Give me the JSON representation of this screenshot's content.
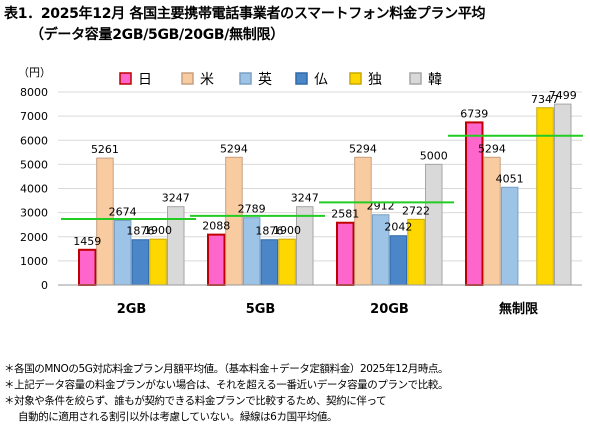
{
  "title_line1": "表1．2025年12月 各国主要携帯電話事業者のスマートフォン料金プラン平均",
  "title_line2": "（データ容量2GB/5GB/20GB/無制限）",
  "chart_data": {
    "type": "bar",
    "yunit": "（円）",
    "ylim": [
      0,
      8000
    ],
    "yticks": [
      0,
      1000,
      2000,
      3000,
      4000,
      5000,
      6000,
      7000,
      8000
    ],
    "grid": true,
    "legend_position": "top",
    "categories": [
      "2GB",
      "5GB",
      "20GB",
      "無制限"
    ],
    "series": [
      {
        "name": "日",
        "color": "#ff66cc",
        "edge": "#c00000",
        "values": [
          1459,
          2088,
          2581,
          6739
        ]
      },
      {
        "name": "米",
        "color": "#f8cba0",
        "edge": "#c8a080",
        "values": [
          5261,
          5294,
          5294,
          5294
        ]
      },
      {
        "name": "英",
        "color": "#9dc3e6",
        "edge": "#7aa0c4",
        "values": [
          2674,
          2789,
          2912,
          4051
        ]
      },
      {
        "name": "仏",
        "color": "#4a86c8",
        "edge": "#2f6aa8",
        "values": [
          1876,
          1876,
          2042,
          null
        ]
      },
      {
        "name": "独",
        "color": "#ffd700",
        "edge": "#c8a800",
        "values": [
          1900,
          1900,
          2722,
          7347
        ]
      },
      {
        "name": "韓",
        "color": "#d9d9d9",
        "edge": "#a6a6a6",
        "values": [
          3247,
          3247,
          5000,
          7499
        ]
      }
    ],
    "averages": {
      "color": "#22cc22",
      "values": [
        2736,
        2866,
        3425,
        6186
      ]
    },
    "labels": [
      [
        "1459",
        "5261",
        "2674",
        "1876",
        "1900",
        "3247"
      ],
      [
        "2088",
        "5294",
        "2789",
        "1876",
        "1900",
        "3247"
      ],
      [
        "2581",
        "5294",
        "2912",
        "2042",
        "2722",
        "5000"
      ],
      [
        "6739",
        "5294",
        "4051",
        "",
        "7347",
        "7499"
      ]
    ]
  },
  "notes": [
    "＊各国のMNOの5G対応料金プラン月額平均値。（基本料金＋データ定額料金）2025年12月時点。",
    "＊上記データ容量の料金プランがない場合は、それを超える一番近いデータ容量のプランで比較。",
    "＊対象や条件を絞らず、誰もが契約できる料金プランで比較するため、契約に伴って",
    "自動的に適用される割引以外は考慮していない。緑線は6カ国平均値。"
  ]
}
